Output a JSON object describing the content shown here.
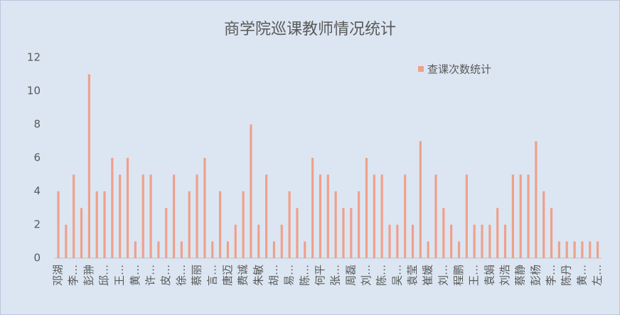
{
  "chart_data": {
    "type": "bar",
    "title": "商学院巡课教师情况统计",
    "categories": [
      "邓湖",
      null,
      "李…",
      null,
      "彭翀",
      null,
      "邱…",
      null,
      "王…",
      null,
      "黄…",
      null,
      "许…",
      null,
      "皮…",
      null,
      "徐…",
      null,
      "蔡丽",
      null,
      "言…",
      null,
      "唐迈",
      null,
      "费诚",
      null,
      "朱敏",
      null,
      "胡…",
      null,
      "易…",
      null,
      "陈…",
      null,
      "何平",
      null,
      "张…",
      null,
      "周磊",
      null,
      "刘…",
      null,
      "陈…",
      null,
      "吴…",
      null,
      "袁莹",
      null,
      "崔媛",
      null,
      "刘…",
      null,
      "程鹏",
      null,
      "王…",
      null,
      "袁娟",
      null,
      "刘浩",
      null,
      "蔡静",
      null,
      "彭杨",
      null,
      "李…",
      null,
      "陈丹",
      null,
      "黄…",
      null,
      "左…"
    ],
    "series": [
      {
        "name": "查课次数统计",
        "color": "#f0a08a",
        "values": [
          4,
          2,
          5,
          3,
          11,
          4,
          4,
          6,
          5,
          6,
          1,
          5,
          5,
          1,
          3,
          5,
          1,
          4,
          5,
          6,
          1,
          4,
          1,
          2,
          4,
          8,
          2,
          5,
          1,
          2,
          4,
          3,
          1,
          6,
          5,
          5,
          4,
          3,
          3,
          4,
          6,
          5,
          5,
          2,
          2,
          5,
          2,
          7,
          1,
          5,
          3,
          2,
          1,
          5,
          2,
          2,
          2,
          3,
          2,
          5,
          5,
          5,
          7,
          4,
          3,
          1,
          1,
          1,
          1,
          1,
          1
        ]
      }
    ],
    "ylim": [
      0,
      12
    ],
    "yticks": [
      0,
      2,
      4,
      6,
      8,
      10,
      12
    ],
    "grid": false,
    "legend": "top-right"
  }
}
